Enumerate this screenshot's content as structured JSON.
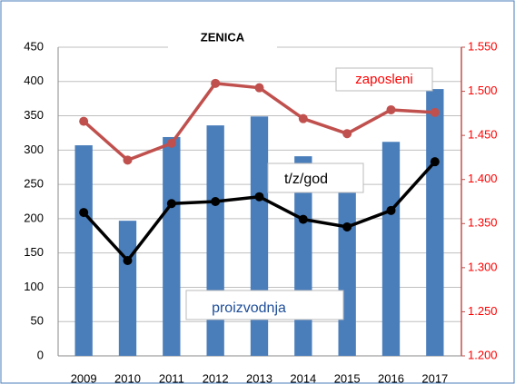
{
  "chart_data": {
    "type": "bar-line",
    "title": "ZENICA",
    "categories": [
      "2009",
      "2010",
      "2011",
      "2012",
      "2013",
      "2014",
      "2015",
      "2016",
      "2017"
    ],
    "series": [
      {
        "name": "proizvodnja",
        "type": "bar",
        "color": "#4a7ebb",
        "values": [
          307,
          197,
          319,
          336,
          349,
          291,
          238,
          312,
          389
        ]
      },
      {
        "name": "t/z/god",
        "type": "line",
        "color": "#000000",
        "values": [
          209,
          139,
          222,
          225,
          232,
          199,
          188,
          212,
          283
        ]
      },
      {
        "name": "zaposleni",
        "type": "line",
        "axis": "y2",
        "color": "#c0504d",
        "values": [
          1466,
          1422,
          1441,
          1509,
          1504,
          1469,
          1452,
          1479,
          1476
        ]
      }
    ],
    "ylim": [
      0,
      450
    ],
    "yticks": [
      0,
      50,
      100,
      150,
      200,
      250,
      300,
      350,
      400,
      450
    ],
    "y2lim": [
      1200,
      1550
    ],
    "y2ticks": [
      {
        "value": 1200,
        "label": "1.200"
      },
      {
        "value": 1250,
        "label": "1.250"
      },
      {
        "value": 1300,
        "label": "1.300"
      },
      {
        "value": 1350,
        "label": "1.350"
      },
      {
        "value": 1400,
        "label": "1.400"
      },
      {
        "value": 1450,
        "label": "1.450"
      },
      {
        "value": 1500,
        "label": "1.500"
      },
      {
        "value": 1550,
        "label": "1.550"
      }
    ],
    "y2color": "#ff0000",
    "grid": true
  }
}
